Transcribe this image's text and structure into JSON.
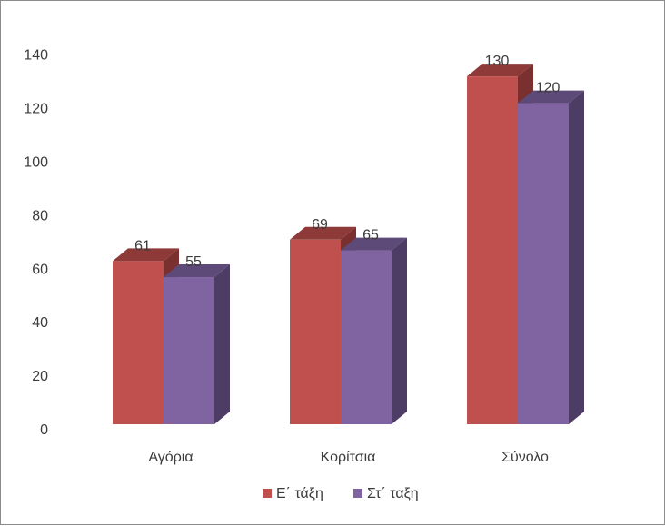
{
  "chart_data": {
    "type": "bar",
    "style": "3d-clustered-column",
    "categories": [
      "Αγόρια",
      "Κορίτσια",
      "Σύνολο"
    ],
    "series": [
      {
        "name": "Ε΄ τάξη",
        "values": [
          61,
          69,
          130
        ],
        "color": "#c0504d",
        "top_color": "#8e3a38",
        "side_color": "#7a302e"
      },
      {
        "name": "Στ΄ ταξη",
        "values": [
          55,
          65,
          120
        ],
        "color": "#8064a2",
        "top_color": "#5e4a78",
        "side_color": "#4d3c63"
      }
    ],
    "data_labels": [
      [
        "61",
        "69",
        "130"
      ],
      [
        "55",
        "65",
        "120"
      ]
    ],
    "y_ticks": [
      "0",
      "20",
      "40",
      "60",
      "80",
      "100",
      "120",
      "140"
    ],
    "ylim": [
      0,
      140
    ],
    "grid": false,
    "legend_position": "bottom"
  }
}
